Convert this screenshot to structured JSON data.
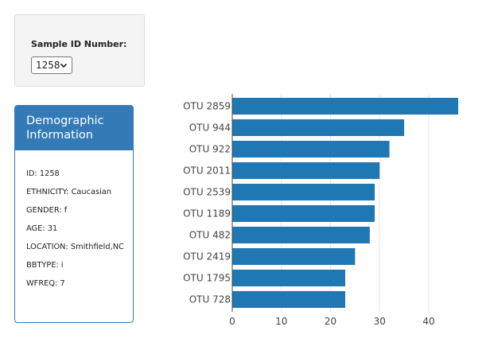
{
  "selector": {
    "label": "Sample ID Number:",
    "selected_value": "1258"
  },
  "demographics": {
    "title": "Demographic Information",
    "lines": [
      "ID: 1258",
      "ETHNICITY: Caucasian",
      "GENDER: f",
      "AGE: 31",
      "LOCATION: Smithfield,NC",
      "BBTYPE: i",
      "WFREQ: 7"
    ]
  },
  "colors": {
    "bar": "#1f77b4",
    "panel_accent": "#337ab7"
  },
  "chart_data": {
    "type": "bar",
    "orientation": "horizontal",
    "categories": [
      "OTU 2859",
      "OTU 944",
      "OTU 922",
      "OTU 2011",
      "OTU 2539",
      "OTU 1189",
      "OTU 482",
      "OTU 2419",
      "OTU 1795",
      "OTU 728"
    ],
    "values": [
      46,
      35,
      32,
      30,
      29,
      29,
      28,
      25,
      23,
      23
    ],
    "xlim": [
      0,
      46
    ],
    "xticks": [
      "0",
      "10",
      "20",
      "30",
      "40"
    ],
    "grid": "vertical"
  }
}
